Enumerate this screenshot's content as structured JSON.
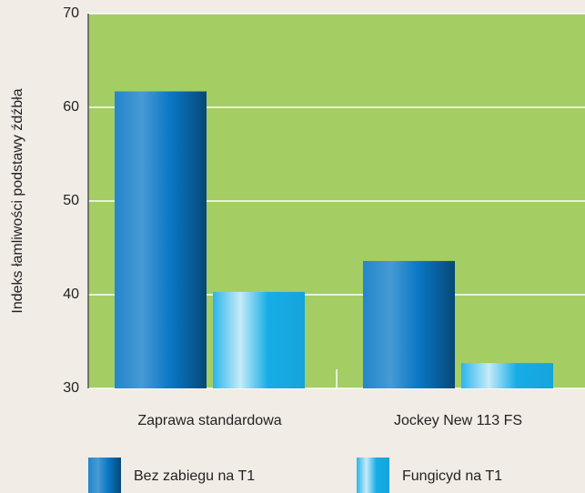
{
  "chart_data": {
    "type": "bar",
    "y_label": "Indeks łamliwości podstawy źdźbła",
    "categories": [
      "Zaprawa standardowa",
      "Jockey New 113 FS"
    ],
    "series": [
      {
        "name": "Bez zabiegu na T1",
        "color": "#0a78c6",
        "values": [
          61.7,
          43.6
        ]
      },
      {
        "name": "Fungicyd na T1",
        "color": "#16ade6",
        "values": [
          40.3,
          32.7
        ]
      }
    ],
    "ylim": [
      30,
      70
    ],
    "yticks": [
      30,
      40,
      50,
      60,
      70
    ],
    "grid": true
  }
}
